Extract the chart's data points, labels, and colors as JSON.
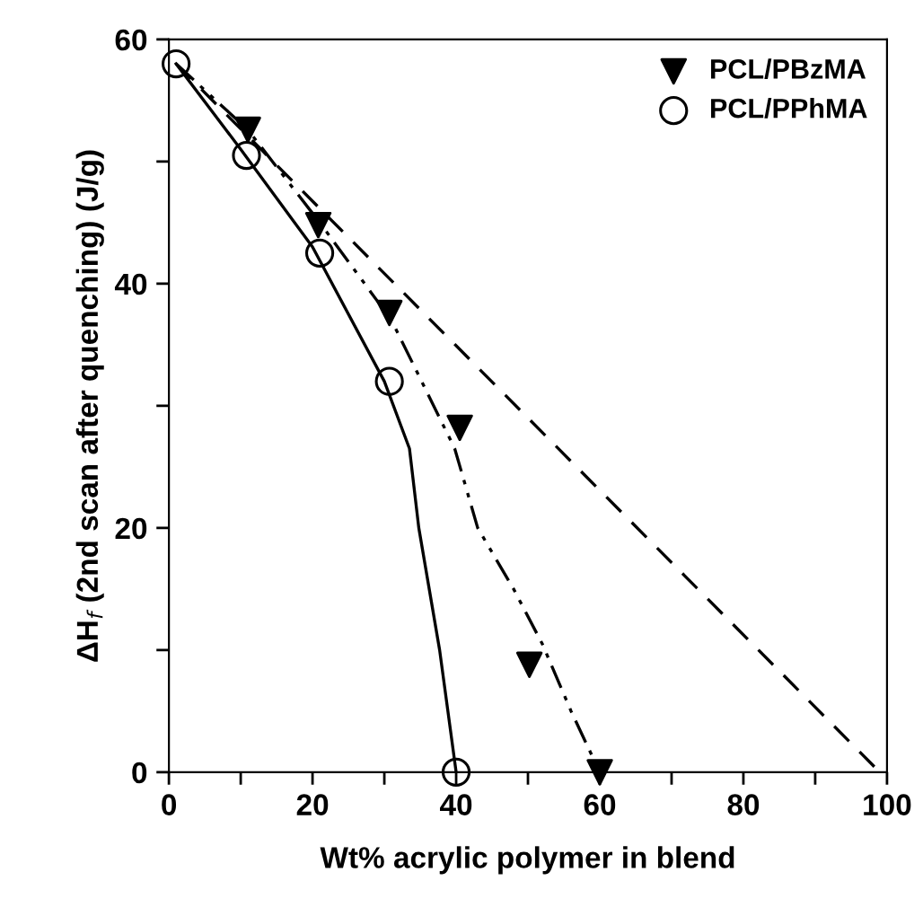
{
  "chart_data": {
    "type": "scatter",
    "xlabel": "Wt% acrylic polymer in blend",
    "ylabel": "ΔH$_{f}$ (2nd scan after quenching) (J/g)",
    "xlim": [
      0,
      100
    ],
    "ylim": [
      0,
      60
    ],
    "xticks": [
      0,
      {
        "value": 10,
        "label": null
      },
      20,
      {
        "value": 30,
        "label": null
      },
      40,
      {
        "value": 50,
        "label": null
      },
      60,
      {
        "value": 70,
        "label": null
      },
      80,
      {
        "value": 90,
        "label": null
      },
      100
    ],
    "yticks": [
      0,
      {
        "value": 10,
        "label": null
      },
      20,
      {
        "value": 30,
        "label": null
      },
      40,
      {
        "value": 50,
        "label": null
      },
      60
    ],
    "grid": false,
    "legend": "top right",
    "series": [
      {
        "name": "PCL/PBzMA",
        "marker": "triangle",
        "color": "#000000",
        "x": [
          11,
          20.8,
          30.7,
          40.5,
          50.2,
          60
        ],
        "values": [
          52.6,
          44.8,
          37.6,
          28.2,
          8.8,
          0
        ]
      },
      {
        "name": "PCL/PPhMA",
        "marker": "circle",
        "color": "#000000",
        "x": [
          1,
          10.8,
          21,
          30.7,
          40
        ],
        "values": [
          58,
          50.5,
          42.5,
          32,
          0
        ]
      },
      {
        "type": "line",
        "line_style": "dashed",
        "color": "#000000",
        "x": [
          1,
          99
        ],
        "values": [
          58,
          0
        ]
      },
      {
        "type": "line",
        "line_style": "dotted",
        "color": "#000000",
        "x": [
          1,
          11,
          21,
          31,
          39.8,
          43,
          48,
          52,
          56,
          60
        ],
        "values": [
          58,
          52.6,
          45,
          37,
          26.5,
          20,
          15,
          10.5,
          5,
          0
        ]
      },
      {
        "type": "line",
        "line_style": "solid",
        "color": "#000000",
        "x": [
          1,
          10,
          20,
          30,
          33.5,
          34.8,
          37.7,
          40
        ],
        "values": [
          58,
          51,
          43,
          32,
          26.5,
          20,
          10,
          0
        ]
      }
    ]
  }
}
